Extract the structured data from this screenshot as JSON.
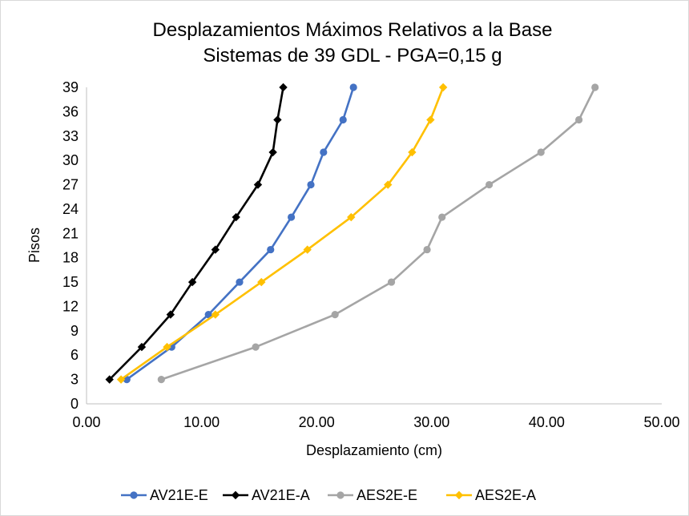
{
  "chart_data": {
    "type": "line",
    "title": "Desplazamientos Máximos Relativos a la Base",
    "subtitle": "Sistemas de 39 GDL - PGA=0,15 g",
    "xlabel": "Desplazamiento (cm)",
    "ylabel": "Pisos",
    "xlim": [
      0,
      50
    ],
    "ylim": [
      0,
      39
    ],
    "x_ticks": [
      "0.00",
      "10.00",
      "20.00",
      "30.00",
      "40.00",
      "50.00"
    ],
    "y_ticks": [
      "0",
      "3",
      "6",
      "9",
      "12",
      "15",
      "18",
      "21",
      "24",
      "27",
      "30",
      "33",
      "36",
      "39"
    ],
    "grid": false,
    "legend_position": "bottom",
    "series": [
      {
        "name": "AV21E-E",
        "color": "#4472C4",
        "marker": "circle",
        "points": [
          [
            3.5,
            3
          ],
          [
            7.4,
            7
          ],
          [
            10.6,
            11
          ],
          [
            13.3,
            15
          ],
          [
            16.0,
            19
          ],
          [
            17.8,
            23
          ],
          [
            19.5,
            27
          ],
          [
            20.6,
            31
          ],
          [
            22.3,
            35
          ],
          [
            23.2,
            39
          ]
        ]
      },
      {
        "name": "AV21E-A",
        "color": "#000000",
        "marker": "diamond",
        "points": [
          [
            2.0,
            3
          ],
          [
            4.8,
            7
          ],
          [
            7.3,
            11
          ],
          [
            9.2,
            15
          ],
          [
            11.2,
            19
          ],
          [
            13.0,
            23
          ],
          [
            14.9,
            27
          ],
          [
            16.2,
            31
          ],
          [
            16.6,
            35
          ],
          [
            17.1,
            39
          ]
        ]
      },
      {
        "name": "AES2E-E",
        "color": "#A5A5A5",
        "marker": "circle",
        "points": [
          [
            6.5,
            3
          ],
          [
            14.7,
            7
          ],
          [
            21.6,
            11
          ],
          [
            26.5,
            15
          ],
          [
            29.6,
            19
          ],
          [
            30.9,
            23
          ],
          [
            35.0,
            27
          ],
          [
            39.5,
            31
          ],
          [
            42.8,
            35
          ],
          [
            44.2,
            39
          ]
        ]
      },
      {
        "name": "AES2E-A",
        "color": "#FFC000",
        "marker": "diamond",
        "points": [
          [
            3.0,
            3
          ],
          [
            7.0,
            7
          ],
          [
            11.2,
            11
          ],
          [
            15.2,
            15
          ],
          [
            19.2,
            19
          ],
          [
            23.0,
            23
          ],
          [
            26.2,
            27
          ],
          [
            28.3,
            31
          ],
          [
            29.9,
            35
          ],
          [
            31.0,
            39
          ]
        ]
      }
    ]
  }
}
